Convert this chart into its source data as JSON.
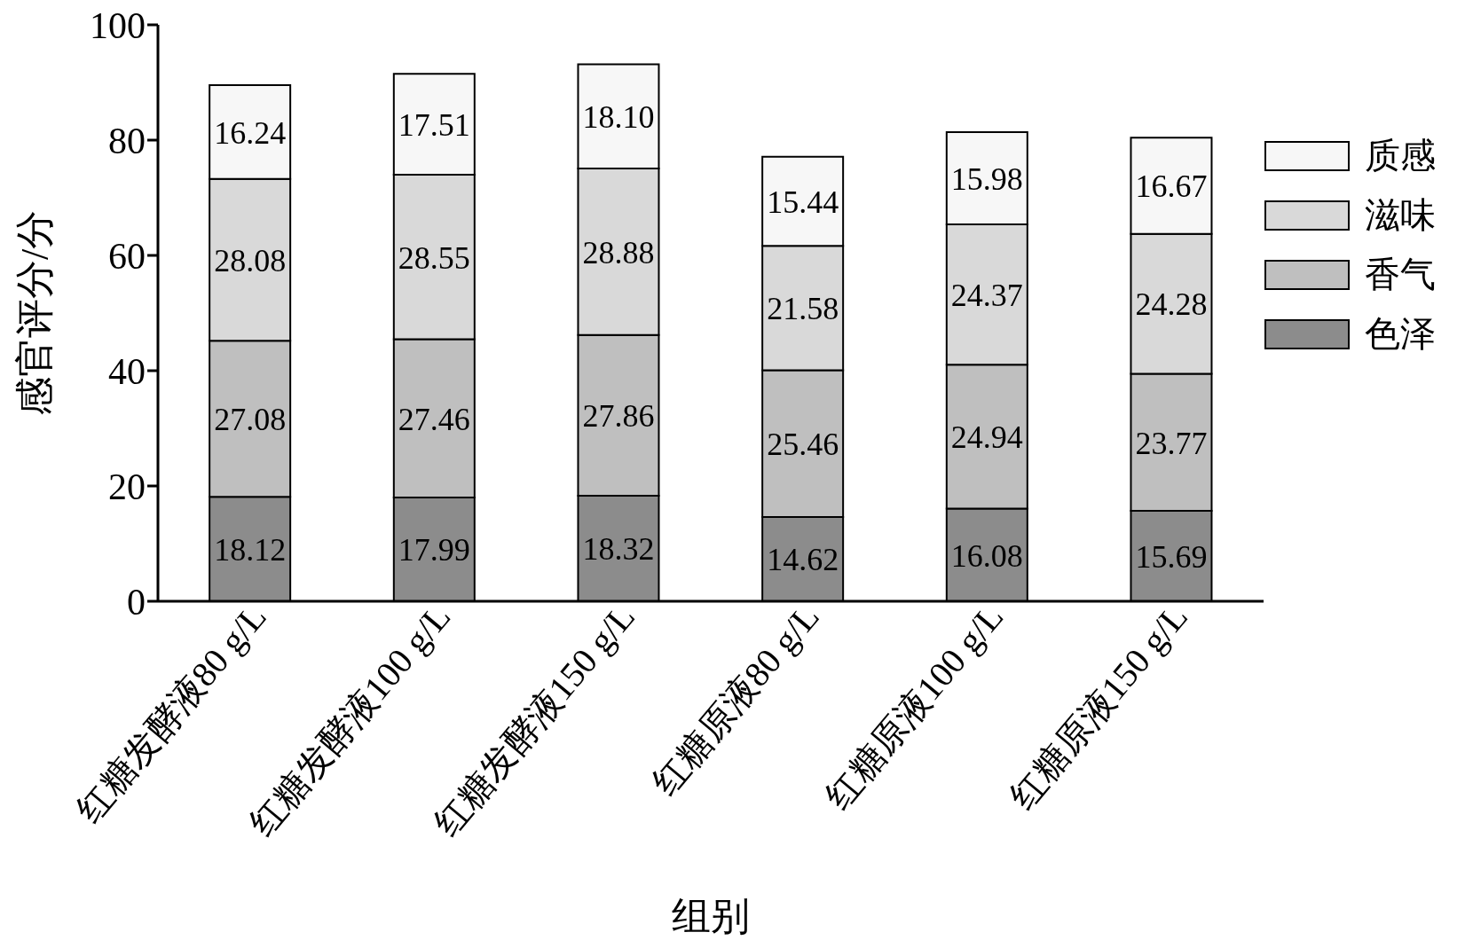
{
  "chart_data": {
    "type": "bar",
    "stacked": true,
    "xlabel": "组别",
    "ylabel": "感官评分/分",
    "categories": [
      "红糖发酵液80 g/L",
      "红糖发酵液100 g/L",
      "红糖发酵液150 g/L",
      "红糖原液80 g/L",
      "红糖原液100 g/L",
      "红糖原液150 g/L"
    ],
    "series": [
      {
        "name": "色泽",
        "color": "#8c8c8c",
        "values": [
          18.12,
          17.99,
          18.32,
          14.62,
          16.08,
          15.69
        ],
        "value_labels": [
          "18.12",
          "17.99",
          "18.32",
          "14.62",
          "16.08",
          "15.69"
        ]
      },
      {
        "name": "香气",
        "color": "#bfbfbf",
        "values": [
          27.08,
          27.46,
          27.86,
          25.46,
          24.94,
          23.77
        ],
        "value_labels": [
          "27.08",
          "27.46",
          "27.86",
          "25.46",
          "24.94",
          "23.77"
        ]
      },
      {
        "name": "滋味",
        "color": "#d9d9d9",
        "values": [
          28.08,
          28.55,
          28.88,
          21.58,
          24.37,
          24.28
        ],
        "value_labels": [
          "28.08",
          "28.55",
          "28.88",
          "21.58",
          "24.37",
          "24.28"
        ]
      },
      {
        "name": "质感",
        "color": "#f7f7f7",
        "values": [
          16.24,
          17.51,
          18.1,
          15.44,
          15.98,
          16.67
        ],
        "value_labels": [
          "16.24",
          "17.51",
          "18.10",
          "15.44",
          "15.98",
          "16.67"
        ]
      }
    ],
    "ylim": [
      0,
      100
    ],
    "yticks": [
      0,
      20,
      40,
      60,
      80,
      100
    ],
    "legend": "right"
  }
}
